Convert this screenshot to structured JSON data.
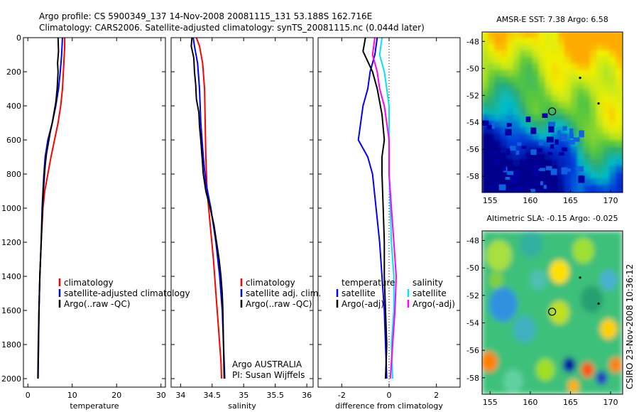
{
  "title": {
    "line1": "Argo profile: CS 5900349_137 14-Nov-2008 20081115_131 53.188S 162.716E",
    "line2": "Climatology: CARS2006. Satellite-adjusted climatology: synTS_20081115.nc (0.044d later)"
  },
  "side_label": "CSIRO 23-Nov-2008 10:36:12",
  "chart_data": [
    {
      "type": "line",
      "id": "temperature",
      "xlabel": "temperature",
      "xlim": [
        -1,
        31
      ],
      "ylim": [
        2050,
        0
      ],
      "xticks": [
        0,
        10,
        20,
        30
      ],
      "yticks": [
        0,
        200,
        400,
        600,
        800,
        1000,
        1200,
        1400,
        1600,
        1800,
        2000
      ],
      "legend": {
        "placement": "bottom-right",
        "entries": [
          "climatology",
          "satellite-adjusted climatology",
          "Argo(..raw -QC)"
        ]
      },
      "series": [
        {
          "name": "climatology",
          "color": "#ff0000",
          "points": [
            [
              8.3,
              0
            ],
            [
              8.3,
              50
            ],
            [
              8.1,
              150
            ],
            [
              7.8,
              300
            ],
            [
              7.4,
              400
            ],
            [
              6.8,
              500
            ],
            [
              6.0,
              600
            ],
            [
              5.2,
              700
            ],
            [
              4.5,
              800
            ],
            [
              3.8,
              900
            ],
            [
              3.4,
              1000
            ],
            [
              3.0,
              1200
            ],
            [
              2.7,
              1400
            ],
            [
              2.5,
              1600
            ],
            [
              2.4,
              1800
            ],
            [
              2.3,
              2000
            ]
          ]
        },
        {
          "name": "satellite-adjusted climatology",
          "color": "#0000ff",
          "points": [
            [
              7.8,
              0
            ],
            [
              7.6,
              100
            ],
            [
              7.3,
              200
            ],
            [
              6.9,
              300
            ],
            [
              6.3,
              400
            ],
            [
              5.5,
              500
            ],
            [
              4.5,
              600
            ],
            [
              3.9,
              700
            ],
            [
              3.6,
              800
            ],
            [
              3.4,
              900
            ],
            [
              3.2,
              1000
            ],
            [
              3.0,
              1200
            ],
            [
              2.7,
              1400
            ],
            [
              2.5,
              1600
            ],
            [
              2.4,
              1800
            ],
            [
              2.3,
              2000
            ]
          ]
        },
        {
          "name": "Argo(..raw -QC)",
          "color": "#000000",
          "points": [
            [
              6.8,
              0
            ],
            [
              6.9,
              80
            ],
            [
              6.7,
              150
            ],
            [
              6.8,
              200
            ],
            [
              6.6,
              300
            ],
            [
              6.3,
              380
            ],
            [
              5.9,
              440
            ],
            [
              5.5,
              500
            ],
            [
              5.0,
              560
            ],
            [
              4.6,
              620
            ],
            [
              4.2,
              680
            ],
            [
              3.9,
              750
            ],
            [
              3.7,
              820
            ],
            [
              3.5,
              900
            ],
            [
              3.3,
              1000
            ],
            [
              3.0,
              1200
            ],
            [
              2.7,
              1400
            ],
            [
              2.5,
              1600
            ],
            [
              2.35,
              1800
            ],
            [
              2.25,
              2000
            ]
          ]
        }
      ]
    },
    {
      "type": "line",
      "id": "salinity",
      "xlabel": "salinity",
      "xlim": [
        33.85,
        36.1
      ],
      "ylim": [
        2050,
        0
      ],
      "xticks": [
        34,
        34.5,
        35,
        35.5,
        36
      ],
      "xticklabels": [
        "34",
        "34.5",
        "35",
        "35.5",
        "36"
      ],
      "legend": {
        "placement": "bottom-right",
        "entries": [
          "climatology",
          "satellite adj. clim.",
          "Argo(..raw -QC)"
        ]
      },
      "annotation": [
        "Argo AUSTRALIA",
        "PI: Susan Wijffels"
      ],
      "series": [
        {
          "name": "climatology",
          "color": "#ff0000",
          "points": [
            [
              34.25,
              0
            ],
            [
              34.3,
              50
            ],
            [
              34.35,
              150
            ],
            [
              34.38,
              300
            ],
            [
              34.39,
              500
            ],
            [
              34.4,
              700
            ],
            [
              34.42,
              900
            ],
            [
              34.47,
              1100
            ],
            [
              34.52,
              1300
            ],
            [
              34.56,
              1500
            ],
            [
              34.6,
              1700
            ],
            [
              34.64,
              1900
            ],
            [
              34.65,
              2000
            ]
          ]
        },
        {
          "name": "satellite adj. clim.",
          "color": "#0000ff",
          "points": [
            [
              34.2,
              0
            ],
            [
              34.22,
              50
            ],
            [
              34.27,
              150
            ],
            [
              34.3,
              300
            ],
            [
              34.32,
              500
            ],
            [
              34.36,
              700
            ],
            [
              34.4,
              850
            ],
            [
              34.48,
              1000
            ],
            [
              34.56,
              1200
            ],
            [
              34.62,
              1400
            ],
            [
              34.66,
              1600
            ],
            [
              34.68,
              1800
            ],
            [
              34.7,
              2000
            ]
          ]
        },
        {
          "name": "Argo(..raw -QC)",
          "color": "#000000",
          "points": [
            [
              34.18,
              0
            ],
            [
              34.17,
              50
            ],
            [
              34.21,
              120
            ],
            [
              34.22,
              200
            ],
            [
              34.24,
              280
            ],
            [
              34.25,
              360
            ],
            [
              34.29,
              440
            ],
            [
              34.3,
              520
            ],
            [
              34.32,
              600
            ],
            [
              34.34,
              700
            ],
            [
              34.36,
              800
            ],
            [
              34.4,
              900
            ],
            [
              34.47,
              1000
            ],
            [
              34.53,
              1100
            ],
            [
              34.57,
              1200
            ],
            [
              34.61,
              1300
            ],
            [
              34.64,
              1400
            ],
            [
              34.66,
              1500
            ],
            [
              34.67,
              1600
            ],
            [
              34.68,
              1800
            ],
            [
              34.69,
              2000
            ]
          ]
        }
      ]
    },
    {
      "type": "line",
      "id": "difference",
      "xlabel": "difference from climatology",
      "xlim": [
        -3,
        3
      ],
      "ylim": [
        2050,
        0
      ],
      "xticks": [
        -2,
        0,
        2
      ],
      "xticklabels": [
        "-2",
        "0",
        "2"
      ],
      "legend": {
        "placement": "bottom",
        "entries": [
          "temperature",
          "satellite",
          "Argo(-adj)",
          "salinity",
          "satellite",
          "Argo(-adj)"
        ]
      },
      "series": [
        {
          "name": "temperature satellite",
          "color": "#0000ff",
          "points": [
            [
              -0.5,
              0
            ],
            [
              -0.6,
              100
            ],
            [
              -0.8,
              200
            ],
            [
              -0.9,
              300
            ],
            [
              -1.1,
              400
            ],
            [
              -1.2,
              500
            ],
            [
              -1.3,
              600
            ],
            [
              -0.9,
              700
            ],
            [
              -0.7,
              800
            ],
            [
              -0.55,
              1000
            ],
            [
              -0.4,
              1200
            ],
            [
              -0.3,
              1400
            ],
            [
              -0.2,
              1600
            ],
            [
              -0.15,
              1800
            ],
            [
              -0.1,
              2000
            ]
          ]
        },
        {
          "name": "temperature Argo(-adj)",
          "color": "#000000",
          "points": [
            [
              -1.0,
              0
            ],
            [
              -1.1,
              80
            ],
            [
              -0.7,
              200
            ],
            [
              -0.5,
              300
            ],
            [
              -0.3,
              450
            ],
            [
              -0.2,
              600
            ],
            [
              -0.3,
              700
            ],
            [
              -0.3,
              800
            ],
            [
              -0.25,
              1000
            ],
            [
              -0.2,
              1200
            ],
            [
              -0.2,
              1400
            ],
            [
              -0.15,
              1600
            ],
            [
              -0.1,
              1800
            ],
            [
              -0.15,
              2000
            ]
          ]
        },
        {
          "name": "salinity satellite",
          "color": "#00e5ee",
          "points": [
            [
              -0.3,
              0
            ],
            [
              -0.4,
              100
            ],
            [
              -0.2,
              200
            ],
            [
              -0.1,
              300
            ],
            [
              0.0,
              400
            ],
            [
              0.0,
              600
            ],
            [
              0.0,
              800
            ],
            [
              0.05,
              1000
            ],
            [
              0.1,
              1200
            ],
            [
              0.2,
              1400
            ],
            [
              0.2,
              1600
            ],
            [
              0.1,
              1800
            ],
            [
              0.15,
              2000
            ]
          ]
        },
        {
          "name": "salinity Argo(-adj)",
          "color": "#ff00ff",
          "points": [
            [
              -0.6,
              0
            ],
            [
              -0.7,
              100
            ],
            [
              -0.5,
              200
            ],
            [
              -0.4,
              300
            ],
            [
              -0.2,
              400
            ],
            [
              -0.1,
              500
            ],
            [
              0.0,
              600
            ],
            [
              0.0,
              800
            ],
            [
              0.1,
              1000
            ],
            [
              0.2,
              1200
            ],
            [
              0.3,
              1400
            ],
            [
              0.25,
              1600
            ],
            [
              0.15,
              1800
            ],
            [
              0.05,
              2000
            ]
          ]
        }
      ]
    },
    {
      "type": "heatmap",
      "id": "sst",
      "title": "AMSR-E SST: 7.38 Argo: 6.58",
      "xlim": [
        154,
        171.5
      ],
      "ylim": [
        -59.2,
        -47.3
      ],
      "xticks": [
        155,
        160,
        165,
        170
      ],
      "yticks": [
        -48,
        -50,
        -52,
        -54,
        -56,
        -58
      ],
      "marker": {
        "lon": 162.716,
        "lat": -53.188
      }
    },
    {
      "type": "heatmap",
      "id": "sla",
      "title": "Altimetric SLA: -0.15 Argo: -0.025",
      "xlim": [
        154,
        171.5
      ],
      "ylim": [
        -59.2,
        -47.3
      ],
      "xticks": [
        155,
        160,
        165,
        170
      ],
      "yticks": [
        -48,
        -50,
        -52,
        -54,
        -56,
        -58
      ],
      "marker": {
        "lon": 162.716,
        "lat": -53.188
      }
    }
  ]
}
